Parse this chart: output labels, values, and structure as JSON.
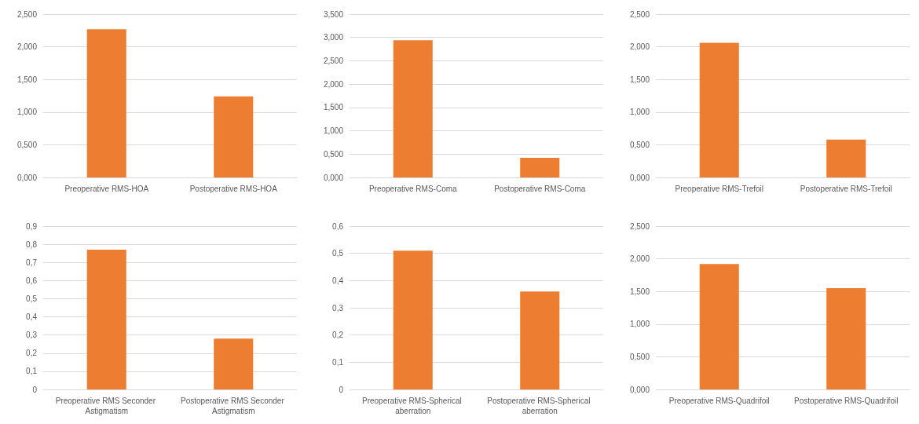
{
  "chart_data": [
    {
      "type": "bar",
      "categories": [
        "Preoperative RMS-HOA",
        "Postoperative RMS-HOA"
      ],
      "values": [
        2.27,
        1.24
      ],
      "color": "#ed7d31",
      "ylim": [
        0,
        2.5
      ],
      "yticks": [
        {
          "value": 0,
          "label": "0,000"
        },
        {
          "value": 0.5,
          "label": "0,500"
        },
        {
          "value": 1,
          "label": "1,000"
        },
        {
          "value": 1.5,
          "label": "1,500"
        },
        {
          "value": 2,
          "label": "2,000"
        },
        {
          "value": 2.5,
          "label": "2,500"
        }
      ],
      "grid": "y"
    },
    {
      "type": "bar",
      "categories": [
        "Preoperative RMS-Coma",
        "Postoperative RMS-Coma"
      ],
      "values": [
        2.94,
        0.42
      ],
      "color": "#ed7d31",
      "ylim": [
        0,
        3.5
      ],
      "yticks": [
        {
          "value": 0,
          "label": "0,000"
        },
        {
          "value": 0.5,
          "label": "0,500"
        },
        {
          "value": 1,
          "label": "1,000"
        },
        {
          "value": 1.5,
          "label": "1,500"
        },
        {
          "value": 2,
          "label": "2,000"
        },
        {
          "value": 2.5,
          "label": "2,500"
        },
        {
          "value": 3,
          "label": "3,000"
        },
        {
          "value": 3.5,
          "label": "3,500"
        }
      ],
      "grid": "y"
    },
    {
      "type": "bar",
      "categories": [
        "Preoperative RMS-Trefoil",
        "Postoperative RMS-Trefoil"
      ],
      "values": [
        2.06,
        0.58
      ],
      "color": "#ed7d31",
      "ylim": [
        0,
        2.5
      ],
      "yticks": [
        {
          "value": 0,
          "label": "0,000"
        },
        {
          "value": 0.5,
          "label": "0,500"
        },
        {
          "value": 1,
          "label": "1,000"
        },
        {
          "value": 1.5,
          "label": "1,500"
        },
        {
          "value": 2,
          "label": "2,000"
        },
        {
          "value": 2.5,
          "label": "2,500"
        }
      ],
      "grid": "y"
    },
    {
      "type": "bar",
      "categories": [
        "Preoperative RMS Seconder Astigmatism",
        "Postoperative RMS Seconder Astigmatism"
      ],
      "values": [
        0.77,
        0.28
      ],
      "color": "#ed7d31",
      "ylim": [
        0,
        0.9
      ],
      "yticks": [
        0,
        {
          "value": 0.1,
          "label": "0,1"
        },
        {
          "value": 0.2,
          "label": "0,2"
        },
        {
          "value": 0.3,
          "label": "0,3"
        },
        {
          "value": 0.4,
          "label": "0,4"
        },
        {
          "value": 0.5,
          "label": "0,5"
        },
        {
          "value": 0.6,
          "label": "0,6"
        },
        {
          "value": 0.7,
          "label": "0,7"
        },
        {
          "value": 0.8,
          "label": "0,8"
        },
        {
          "value": 0.9,
          "label": "0,9"
        }
      ],
      "grid": "y"
    },
    {
      "type": "bar",
      "categories": [
        "Preoperative RMS-Spherical aberration",
        "Postoperative RMS-Spherical aberration"
      ],
      "values": [
        0.51,
        0.36
      ],
      "color": "#ed7d31",
      "ylim": [
        0,
        0.6
      ],
      "yticks": [
        0,
        {
          "value": 0.1,
          "label": "0,1"
        },
        {
          "value": 0.2,
          "label": "0,2"
        },
        {
          "value": 0.3,
          "label": "0,3"
        },
        {
          "value": 0.4,
          "label": "0,4"
        },
        {
          "value": 0.5,
          "label": "0,5"
        },
        {
          "value": 0.6,
          "label": "0,6"
        }
      ],
      "grid": "y"
    },
    {
      "type": "bar",
      "categories": [
        "Preoperative RMS-Quadrifoil",
        "Postoperative RMS-Quadrifoil"
      ],
      "values": [
        1.92,
        1.55
      ],
      "color": "#ed7d31",
      "ylim": [
        0,
        2.5
      ],
      "yticks": [
        {
          "value": 0,
          "label": "0,000"
        },
        {
          "value": 0.5,
          "label": "0,500"
        },
        {
          "value": 1,
          "label": "1,000"
        },
        {
          "value": 1.5,
          "label": "1,500"
        },
        {
          "value": 2,
          "label": "2,000"
        },
        {
          "value": 2.5,
          "label": "2,500"
        }
      ],
      "grid": "y"
    }
  ]
}
